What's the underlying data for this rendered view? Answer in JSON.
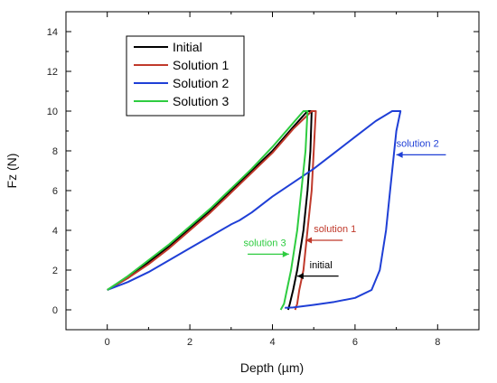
{
  "chart_data": {
    "type": "line",
    "title": "",
    "xlabel": "Depth (µm)",
    "ylabel": "Fz (N)",
    "xlim": [
      -1,
      9
    ],
    "ylim": [
      -1,
      15
    ],
    "x_ticks": [
      0,
      2,
      4,
      6,
      8
    ],
    "y_ticks": [
      0,
      2,
      4,
      6,
      8,
      10,
      12,
      14
    ],
    "grid": false,
    "legend_position": "top-left",
    "series": [
      {
        "name": "Initial",
        "color": "#000000",
        "points": [
          [
            0.0,
            1.0
          ],
          [
            0.5,
            1.6
          ],
          [
            1.0,
            2.4
          ],
          [
            1.5,
            3.2
          ],
          [
            2.0,
            4.1
          ],
          [
            2.5,
            5.0
          ],
          [
            3.0,
            6.0
          ],
          [
            3.5,
            7.0
          ],
          [
            4.0,
            8.0
          ],
          [
            4.5,
            9.2
          ],
          [
            4.85,
            10.0
          ],
          [
            4.95,
            10.0
          ],
          [
            4.92,
            8.0
          ],
          [
            4.85,
            6.0
          ],
          [
            4.75,
            4.0
          ],
          [
            4.6,
            2.0
          ],
          [
            4.5,
            1.0
          ],
          [
            4.42,
            0.3
          ],
          [
            4.38,
            0.0
          ]
        ]
      },
      {
        "name": "Solution 1",
        "color": "#c0392b",
        "points": [
          [
            0.0,
            1.0
          ],
          [
            0.5,
            1.6
          ],
          [
            1.0,
            2.3
          ],
          [
            1.5,
            3.1
          ],
          [
            2.0,
            4.0
          ],
          [
            2.5,
            4.9
          ],
          [
            3.0,
            5.9
          ],
          [
            3.5,
            6.9
          ],
          [
            4.0,
            7.9
          ],
          [
            4.5,
            9.1
          ],
          [
            4.95,
            10.0
          ],
          [
            5.05,
            10.0
          ],
          [
            5.0,
            8.0
          ],
          [
            4.95,
            6.0
          ],
          [
            4.85,
            4.0
          ],
          [
            4.75,
            2.0
          ],
          [
            4.65,
            1.0
          ],
          [
            4.6,
            0.3
          ],
          [
            4.55,
            0.0
          ]
        ]
      },
      {
        "name": "Solution 2",
        "color": "#1f3fd6",
        "points": [
          [
            0.0,
            1.0
          ],
          [
            0.5,
            1.4
          ],
          [
            1.0,
            1.9
          ],
          [
            1.5,
            2.5
          ],
          [
            2.0,
            3.1
          ],
          [
            2.5,
            3.7
          ],
          [
            3.0,
            4.3
          ],
          [
            3.2,
            4.5
          ],
          [
            3.5,
            4.9
          ],
          [
            4.0,
            5.7
          ],
          [
            4.5,
            6.4
          ],
          [
            5.0,
            7.1
          ],
          [
            5.5,
            7.9
          ],
          [
            6.0,
            8.7
          ],
          [
            6.5,
            9.5
          ],
          [
            6.9,
            10.0
          ],
          [
            7.1,
            10.0
          ],
          [
            7.0,
            9.0
          ],
          [
            6.95,
            8.0
          ],
          [
            6.85,
            6.0
          ],
          [
            6.75,
            4.0
          ],
          [
            6.6,
            2.0
          ],
          [
            6.4,
            1.0
          ],
          [
            6.0,
            0.6
          ],
          [
            5.5,
            0.4
          ],
          [
            5.0,
            0.25
          ],
          [
            4.5,
            0.12
          ],
          [
            4.3,
            0.1
          ]
        ]
      },
      {
        "name": "Solution 3",
        "color": "#2ecc40",
        "points": [
          [
            0.0,
            1.0
          ],
          [
            0.5,
            1.7
          ],
          [
            1.0,
            2.5
          ],
          [
            1.5,
            3.3
          ],
          [
            2.0,
            4.2
          ],
          [
            2.5,
            5.1
          ],
          [
            3.0,
            6.1
          ],
          [
            3.5,
            7.1
          ],
          [
            4.0,
            8.2
          ],
          [
            4.5,
            9.4
          ],
          [
            4.75,
            10.0
          ],
          [
            4.85,
            10.0
          ],
          [
            4.8,
            8.0
          ],
          [
            4.7,
            6.0
          ],
          [
            4.6,
            4.0
          ],
          [
            4.45,
            2.0
          ],
          [
            4.35,
            1.0
          ],
          [
            4.28,
            0.3
          ],
          [
            4.2,
            0.0
          ]
        ]
      }
    ],
    "annotations": [
      {
        "text": "solution 2",
        "color": "#1f3fd6",
        "label_x": 7.0,
        "label_y": 8.2,
        "line_from": [
          8.2,
          7.8
        ],
        "arrow_to": [
          7.0,
          7.8
        ]
      },
      {
        "text": "solution 1",
        "color": "#c0392b",
        "label_x": 5.0,
        "label_y": 3.9,
        "line_from": [
          5.7,
          3.5
        ],
        "arrow_to": [
          4.8,
          3.5
        ]
      },
      {
        "text": "solution 3",
        "color": "#2ecc40",
        "label_x": 3.3,
        "label_y": 3.2,
        "line_from": [
          3.4,
          2.8
        ],
        "arrow_to": [
          4.4,
          2.8
        ]
      },
      {
        "text": "initial",
        "color": "#000000",
        "label_x": 4.9,
        "label_y": 2.1,
        "line_from": [
          5.6,
          1.7
        ],
        "arrow_to": [
          4.6,
          1.7
        ]
      }
    ]
  }
}
